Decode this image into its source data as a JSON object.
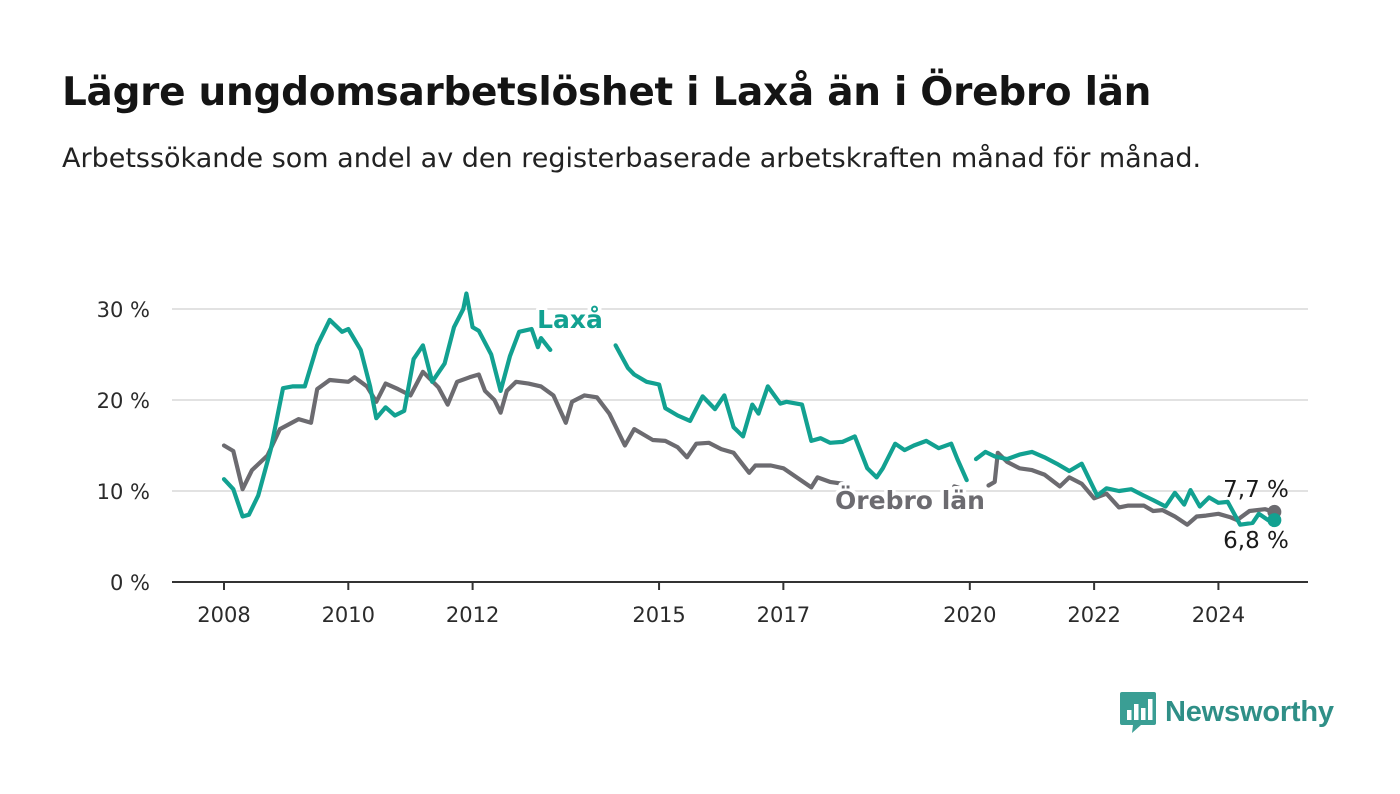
{
  "header": {
    "title": "Lägre ungdomsarbetslöshet i Laxå än i Örebro län",
    "subtitle": "Arbetssökande som andel av den registerbaserade arbetskraften månad för månad."
  },
  "brand": {
    "name": "Newsworthy",
    "icon": "newsworthy-logo-icon",
    "color": "#3a9e94"
  },
  "chart_data": {
    "type": "line",
    "x_unit": "year (decimal)",
    "xlim": [
      2008,
      2025.2
    ],
    "ylim": [
      0,
      30
    ],
    "grid": true,
    "legend": "inline labels",
    "x_ticks": [
      {
        "value": 2008,
        "label": "2008"
      },
      {
        "value": 2010,
        "label": "2010"
      },
      {
        "value": 2012,
        "label": "2012"
      },
      {
        "value": 2015,
        "label": "2015"
      },
      {
        "value": 2017,
        "label": "2017"
      },
      {
        "value": 2020,
        "label": "2020"
      },
      {
        "value": 2022,
        "label": "2022"
      },
      {
        "value": 2024,
        "label": "2024"
      }
    ],
    "y_ticks": [
      {
        "value": 0,
        "label": "0 %"
      },
      {
        "value": 10,
        "label": "10 %"
      },
      {
        "value": 20,
        "label": "20 %"
      },
      {
        "value": 30,
        "label": "30 %"
      }
    ],
    "series": [
      {
        "name": "Örebro län",
        "color": "#6c6b70",
        "end_value": 7.7,
        "end_label": "7,7 %",
        "points": [
          [
            2008.0,
            15.0
          ],
          [
            2008.15,
            14.4
          ],
          [
            2008.3,
            10.2
          ],
          [
            2008.45,
            12.3
          ],
          [
            2008.7,
            13.9
          ],
          [
            2008.9,
            16.8
          ],
          [
            2009.2,
            17.9
          ],
          [
            2009.4,
            17.5
          ],
          [
            2009.5,
            21.2
          ],
          [
            2009.7,
            22.2
          ],
          [
            2010.0,
            22.0
          ],
          [
            2010.1,
            22.5
          ],
          [
            2010.3,
            21.5
          ],
          [
            2010.45,
            19.8
          ],
          [
            2010.6,
            21.8
          ],
          [
            2010.8,
            21.2
          ],
          [
            2011.0,
            20.5
          ],
          [
            2011.2,
            23.1
          ],
          [
            2011.45,
            21.4
          ],
          [
            2011.6,
            19.5
          ],
          [
            2011.75,
            22.0
          ],
          [
            2011.95,
            22.5
          ],
          [
            2012.1,
            22.8
          ],
          [
            2012.2,
            21.0
          ],
          [
            2012.35,
            20.0
          ],
          [
            2012.45,
            18.6
          ],
          [
            2012.55,
            21.0
          ],
          [
            2012.7,
            22.0
          ],
          [
            2012.9,
            21.8
          ],
          [
            2013.1,
            21.5
          ],
          [
            2013.3,
            20.5
          ],
          [
            2013.5,
            17.5
          ],
          [
            2013.6,
            19.8
          ],
          [
            2013.8,
            20.5
          ],
          [
            2014.0,
            20.3
          ],
          [
            2014.2,
            18.5
          ],
          [
            2014.45,
            15.0
          ],
          [
            2014.6,
            16.8
          ],
          [
            2014.9,
            15.6
          ],
          [
            2015.1,
            15.5
          ],
          [
            2015.3,
            14.8
          ],
          [
            2015.45,
            13.7
          ],
          [
            2015.6,
            15.2
          ],
          [
            2015.8,
            15.3
          ],
          [
            2016.0,
            14.6
          ],
          [
            2016.2,
            14.2
          ],
          [
            2016.45,
            12.0
          ],
          [
            2016.55,
            12.8
          ],
          [
            2016.8,
            12.8
          ],
          [
            2017.0,
            12.5
          ],
          [
            2017.15,
            11.8
          ],
          [
            2017.45,
            10.4
          ],
          [
            2017.55,
            11.5
          ],
          [
            2017.75,
            11.0
          ],
          [
            2017.95,
            10.8
          ]
        ],
        "points_b": [
          [
            2019.75,
            10.5
          ],
          [
            2019.9,
            10.2
          ]
        ],
        "points_c": [
          [
            2020.3,
            10.6
          ],
          [
            2020.4,
            11.0
          ],
          [
            2020.45,
            14.2
          ],
          [
            2020.6,
            13.2
          ],
          [
            2020.8,
            12.5
          ],
          [
            2021.0,
            12.3
          ],
          [
            2021.2,
            11.8
          ],
          [
            2021.45,
            10.5
          ],
          [
            2021.6,
            11.5
          ],
          [
            2021.8,
            10.8
          ],
          [
            2022.0,
            9.2
          ],
          [
            2022.2,
            9.7
          ],
          [
            2022.4,
            8.2
          ],
          [
            2022.55,
            8.4
          ],
          [
            2022.8,
            8.4
          ],
          [
            2022.95,
            7.8
          ],
          [
            2023.1,
            7.9
          ],
          [
            2023.3,
            7.2
          ],
          [
            2023.5,
            6.3
          ],
          [
            2023.65,
            7.2
          ],
          [
            2023.8,
            7.3
          ],
          [
            2024.0,
            7.5
          ],
          [
            2024.2,
            7.1
          ],
          [
            2024.3,
            6.8
          ],
          [
            2024.5,
            7.8
          ],
          [
            2024.75,
            8.0
          ],
          [
            2024.9,
            7.7
          ]
        ]
      },
      {
        "name": "Laxå",
        "color": "#12a191",
        "end_value": 6.8,
        "end_label": "6,8 %",
        "points": [
          [
            2008.0,
            11.3
          ],
          [
            2008.15,
            10.2
          ],
          [
            2008.3,
            7.2
          ],
          [
            2008.4,
            7.4
          ],
          [
            2008.55,
            9.5
          ],
          [
            2008.75,
            14.5
          ],
          [
            2008.95,
            21.3
          ],
          [
            2009.1,
            21.5
          ],
          [
            2009.3,
            21.5
          ],
          [
            2009.5,
            26.0
          ],
          [
            2009.7,
            28.8
          ],
          [
            2009.9,
            27.5
          ],
          [
            2010.0,
            27.8
          ],
          [
            2010.2,
            25.5
          ],
          [
            2010.35,
            21.5
          ],
          [
            2010.45,
            18.0
          ],
          [
            2010.6,
            19.2
          ],
          [
            2010.75,
            18.3
          ],
          [
            2010.9,
            18.8
          ],
          [
            2011.05,
            24.5
          ],
          [
            2011.2,
            26.0
          ],
          [
            2011.35,
            22.0
          ],
          [
            2011.55,
            24.0
          ],
          [
            2011.7,
            28.0
          ],
          [
            2011.85,
            30.0
          ],
          [
            2011.9,
            31.7
          ],
          [
            2012.0,
            28.0
          ],
          [
            2012.1,
            27.6
          ],
          [
            2012.3,
            25.0
          ],
          [
            2012.45,
            21.0
          ],
          [
            2012.6,
            24.8
          ],
          [
            2012.75,
            27.5
          ],
          [
            2012.95,
            27.8
          ],
          [
            2013.05,
            25.8
          ],
          [
            2013.1,
            26.8
          ],
          [
            2013.25,
            25.5
          ]
        ],
        "points_b": [
          [
            2014.3,
            26.0
          ],
          [
            2014.5,
            23.5
          ],
          [
            2014.6,
            22.8
          ],
          [
            2014.8,
            22.0
          ],
          [
            2015.0,
            21.7
          ],
          [
            2015.1,
            19.1
          ],
          [
            2015.3,
            18.3
          ],
          [
            2015.5,
            17.7
          ],
          [
            2015.7,
            20.4
          ],
          [
            2015.9,
            19.0
          ],
          [
            2016.05,
            20.5
          ],
          [
            2016.2,
            17.0
          ],
          [
            2016.35,
            16.0
          ],
          [
            2016.5,
            19.5
          ],
          [
            2016.6,
            18.5
          ],
          [
            2016.75,
            21.5
          ],
          [
            2016.95,
            19.6
          ],
          [
            2017.05,
            19.8
          ],
          [
            2017.3,
            19.5
          ],
          [
            2017.45,
            15.5
          ],
          [
            2017.6,
            15.8
          ],
          [
            2017.75,
            15.3
          ],
          [
            2017.95,
            15.4
          ],
          [
            2018.15,
            16.0
          ],
          [
            2018.35,
            12.5
          ],
          [
            2018.5,
            11.5
          ],
          [
            2018.6,
            12.5
          ],
          [
            2018.8,
            15.2
          ],
          [
            2018.95,
            14.5
          ],
          [
            2019.1,
            15.0
          ],
          [
            2019.3,
            15.5
          ],
          [
            2019.5,
            14.7
          ],
          [
            2019.7,
            15.2
          ],
          [
            2019.8,
            13.5
          ],
          [
            2019.95,
            11.2
          ]
        ],
        "points_c": [
          [
            2020.1,
            13.5
          ],
          [
            2020.25,
            14.3
          ],
          [
            2020.4,
            13.8
          ],
          [
            2020.6,
            13.5
          ],
          [
            2020.8,
            14.0
          ],
          [
            2021.0,
            14.3
          ],
          [
            2021.2,
            13.7
          ],
          [
            2021.4,
            13.0
          ],
          [
            2021.6,
            12.2
          ],
          [
            2021.8,
            13.0
          ],
          [
            2022.05,
            9.5
          ],
          [
            2022.2,
            10.3
          ],
          [
            2022.4,
            10.0
          ],
          [
            2022.6,
            10.2
          ],
          [
            2022.8,
            9.5
          ],
          [
            2022.95,
            9.0
          ],
          [
            2023.15,
            8.3
          ],
          [
            2023.3,
            9.8
          ],
          [
            2023.45,
            8.5
          ],
          [
            2023.55,
            10.1
          ],
          [
            2023.7,
            8.3
          ],
          [
            2023.85,
            9.3
          ],
          [
            2024.0,
            8.7
          ],
          [
            2024.15,
            8.8
          ],
          [
            2024.35,
            6.3
          ],
          [
            2024.55,
            6.5
          ],
          [
            2024.65,
            7.5
          ],
          [
            2024.8,
            6.8
          ],
          [
            2024.9,
            6.8
          ]
        ]
      }
    ]
  }
}
